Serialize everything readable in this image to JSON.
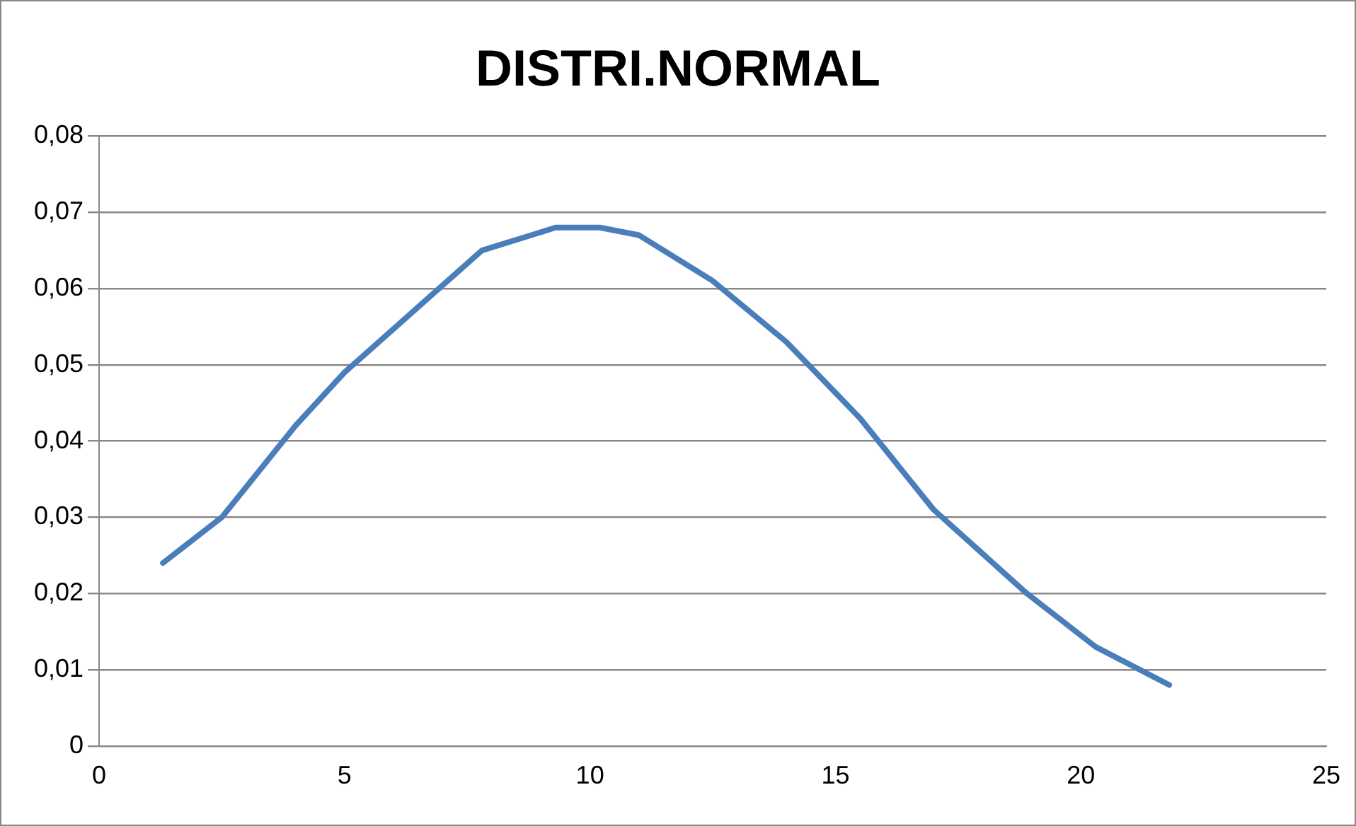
{
  "chart_data": {
    "type": "line",
    "title": "DISTRI.NORMAL",
    "x": [
      1.3,
      2.5,
      4,
      5,
      6.4,
      7.8,
      9.3,
      10.2,
      11,
      12.5,
      14,
      15.5,
      17,
      18.9,
      20.3,
      21.8
    ],
    "series": [
      {
        "color": "#4a7ebb",
        "values": [
          0.024,
          0.03,
          0.042,
          0.049,
          0.057,
          0.065,
          0.068,
          0.068,
          0.067,
          0.061,
          0.053,
          0.043,
          0.031,
          0.02,
          0.013,
          0.008
        ]
      }
    ],
    "xlim": [
      0,
      25
    ],
    "xticks": [
      0,
      5,
      10,
      15,
      20,
      25
    ],
    "ylim": [
      0,
      0.08
    ],
    "yticks": [
      {
        "value": 0,
        "label": "0"
      },
      {
        "value": 0.01,
        "label": "0,01"
      },
      {
        "value": 0.02,
        "label": "0,02"
      },
      {
        "value": 0.03,
        "label": "0,03"
      },
      {
        "value": 0.04,
        "label": "0,04"
      },
      {
        "value": 0.05,
        "label": "0,05"
      },
      {
        "value": 0.06,
        "label": "0,06"
      },
      {
        "value": 0.07,
        "label": "0,07"
      },
      {
        "value": 0.08,
        "label": "0,08"
      }
    ],
    "grid": "y",
    "legend": false,
    "marker": "none",
    "line_style": "solid"
  }
}
